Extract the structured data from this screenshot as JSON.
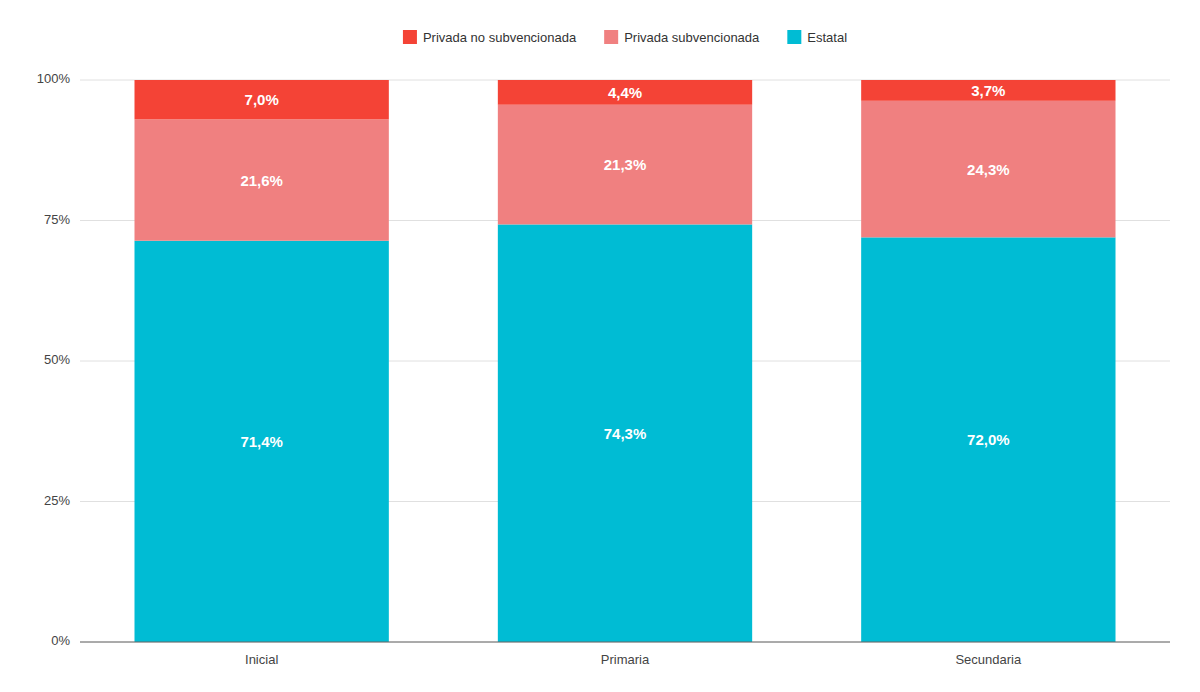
{
  "chart_data": {
    "type": "bar",
    "stacked": true,
    "data_labels": true,
    "grid": true,
    "legend": "top",
    "categories": [
      "Inicial",
      "Primaria",
      "Secundaria"
    ],
    "series": [
      {
        "name": "Estatal",
        "color": "#00BCD4",
        "values": [
          71.4,
          74.3,
          72.0
        ],
        "value_labels": [
          "71,4%",
          "74,3%",
          "72,0%"
        ]
      },
      {
        "name": "Privada subvencionada",
        "color": "#F08080",
        "values": [
          21.6,
          21.3,
          24.3
        ],
        "value_labels": [
          "21,6%",
          "21,3%",
          "24,3%"
        ]
      },
      {
        "name": "Privada no subvencionada",
        "color": "#F44336",
        "values": [
          7.0,
          4.4,
          3.7
        ],
        "value_labels": [
          "7,0%",
          "4,4%",
          "3,7%"
        ]
      }
    ],
    "ylim": [
      0,
      100
    ],
    "yticks": [
      {
        "value": 0,
        "label": "0%"
      },
      {
        "value": 25,
        "label": "25%"
      },
      {
        "value": 50,
        "label": "50%"
      },
      {
        "value": 75,
        "label": "75%"
      },
      {
        "value": 100,
        "label": "100%"
      }
    ]
  }
}
